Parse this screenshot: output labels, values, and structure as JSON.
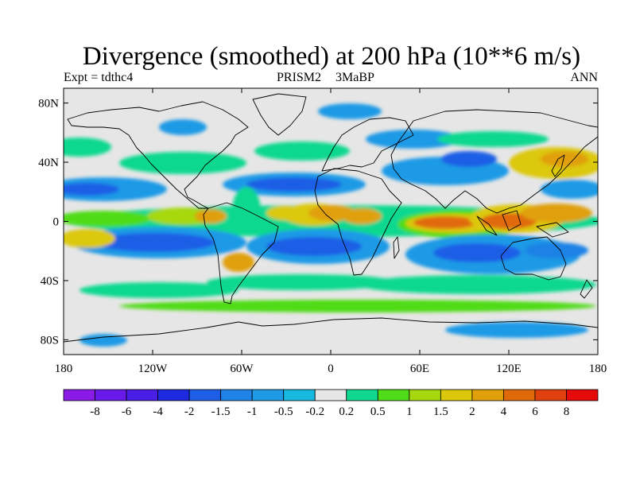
{
  "title": "Divergence (smoothed) at 200 hPa (10**6 m/s)",
  "subtitle_left": "Expt = tdthc4",
  "subtitle_center": "PRISM2 3MaBP",
  "subtitle_right": "ANN",
  "colors": {
    "land_outline": "#000000",
    "missing_or_neutral": "#e6e6e6",
    "palette": [
      "#8a1ae6",
      "#6a1ae8",
      "#4a1ee6",
      "#1e2ae0",
      "#1e5ee6",
      "#1e82e6",
      "#1e9ae6",
      "#18b8e0",
      "#e6e6e6",
      "#10d890",
      "#50dc18",
      "#a6d810",
      "#dcc80a",
      "#e0a00a",
      "#e06a0a",
      "#e0400e",
      "#e60a0a"
    ]
  },
  "map": {
    "type": "filled-contour map",
    "projection": "cylindrical equidistant",
    "lat_ticks": [
      "80N",
      "40N",
      "0",
      "40S",
      "80S"
    ],
    "lon_ticks": [
      "180",
      "120W",
      "60W",
      "0",
      "60E",
      "120E",
      "180"
    ],
    "lon_range": [
      -180,
      180
    ],
    "lat_range": [
      -90,
      90
    ],
    "field": "Divergence at 200 hPa",
    "regions": [
      {
        "name": "maritime-continent-divergence",
        "lon": 115,
        "lat": 0,
        "level": "4 to 6"
      },
      {
        "name": "indian-ocean-divergence",
        "lon": 75,
        "lat": 1,
        "level": "4 to 6"
      },
      {
        "name": "equatorial-africa-divergence",
        "lon": 15,
        "lat": 5,
        "level": "2 to 4"
      },
      {
        "name": "amazon-divergence",
        "lon": -70,
        "lat": 2,
        "level": "2 to 4"
      },
      {
        "name": "south-atlantic-convergence",
        "lon": -10,
        "lat": -18,
        "level": "-2 to -4"
      },
      {
        "name": "south-pacific-convergence",
        "lon": -130,
        "lat": -15,
        "level": "-2 to -4"
      },
      {
        "name": "south-indian-convergence",
        "lon": 80,
        "lat": -25,
        "level": "-1.5 to -2"
      },
      {
        "name": "north-atlantic-subtropical-convergence",
        "lon": -40,
        "lat": 22,
        "level": "-2 to -4"
      },
      {
        "name": "north-pacific-subtropical-convergence",
        "lon": -170,
        "lat": 20,
        "level": "-1 to -2"
      }
    ]
  },
  "colorbar": {
    "labels": [
      "-8",
      "-6",
      "-4",
      "-2",
      "-1.5",
      "-1",
      "-0.5",
      "-0.2",
      "0.2",
      "0.5",
      "1",
      "1.5",
      "2",
      "4",
      "6",
      "8"
    ]
  }
}
